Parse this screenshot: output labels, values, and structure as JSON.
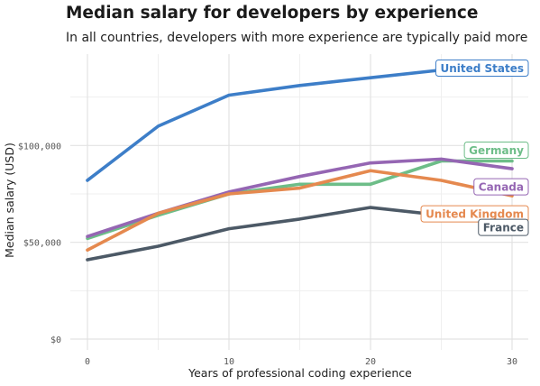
{
  "chart_data": {
    "type": "line",
    "title": "Median salary for developers by experience",
    "subtitle": "In all countries, developers with more experience are typically paid more",
    "xlabel": "Years of professional coding experience",
    "ylabel": "Median salary (USD)",
    "xlim": [
      0,
      30
    ],
    "ylim": [
      0,
      150000
    ],
    "x_ticks": [
      0,
      10,
      20,
      30
    ],
    "y_ticks": [
      0,
      50000,
      100000
    ],
    "y_tick_labels": [
      "$0",
      "$50,000",
      "$100,000"
    ],
    "grid": true,
    "legend": "direct labels at line ends",
    "x": [
      0,
      5,
      10,
      15,
      20,
      25,
      30
    ],
    "series": [
      {
        "name": "United States",
        "color": "#3d7ec8",
        "values": [
          82000,
          110000,
          126000,
          131000,
          135000,
          139000,
          140000
        ]
      },
      {
        "name": "Germany",
        "color": "#6dbd88",
        "values": [
          52000,
          64000,
          75000,
          80000,
          80000,
          92000,
          92000
        ]
      },
      {
        "name": "Canada",
        "color": "#9566b3",
        "values": [
          53000,
          65000,
          76000,
          84000,
          91000,
          93000,
          88000
        ]
      },
      {
        "name": "United Kingdom",
        "color": "#e5894f",
        "values": [
          46000,
          65000,
          75000,
          78000,
          87000,
          82000,
          74000
        ]
      },
      {
        "name": "France",
        "color": "#4c5966",
        "values": [
          41000,
          48000,
          57000,
          62000,
          68000,
          64000,
          67000
        ]
      }
    ]
  }
}
